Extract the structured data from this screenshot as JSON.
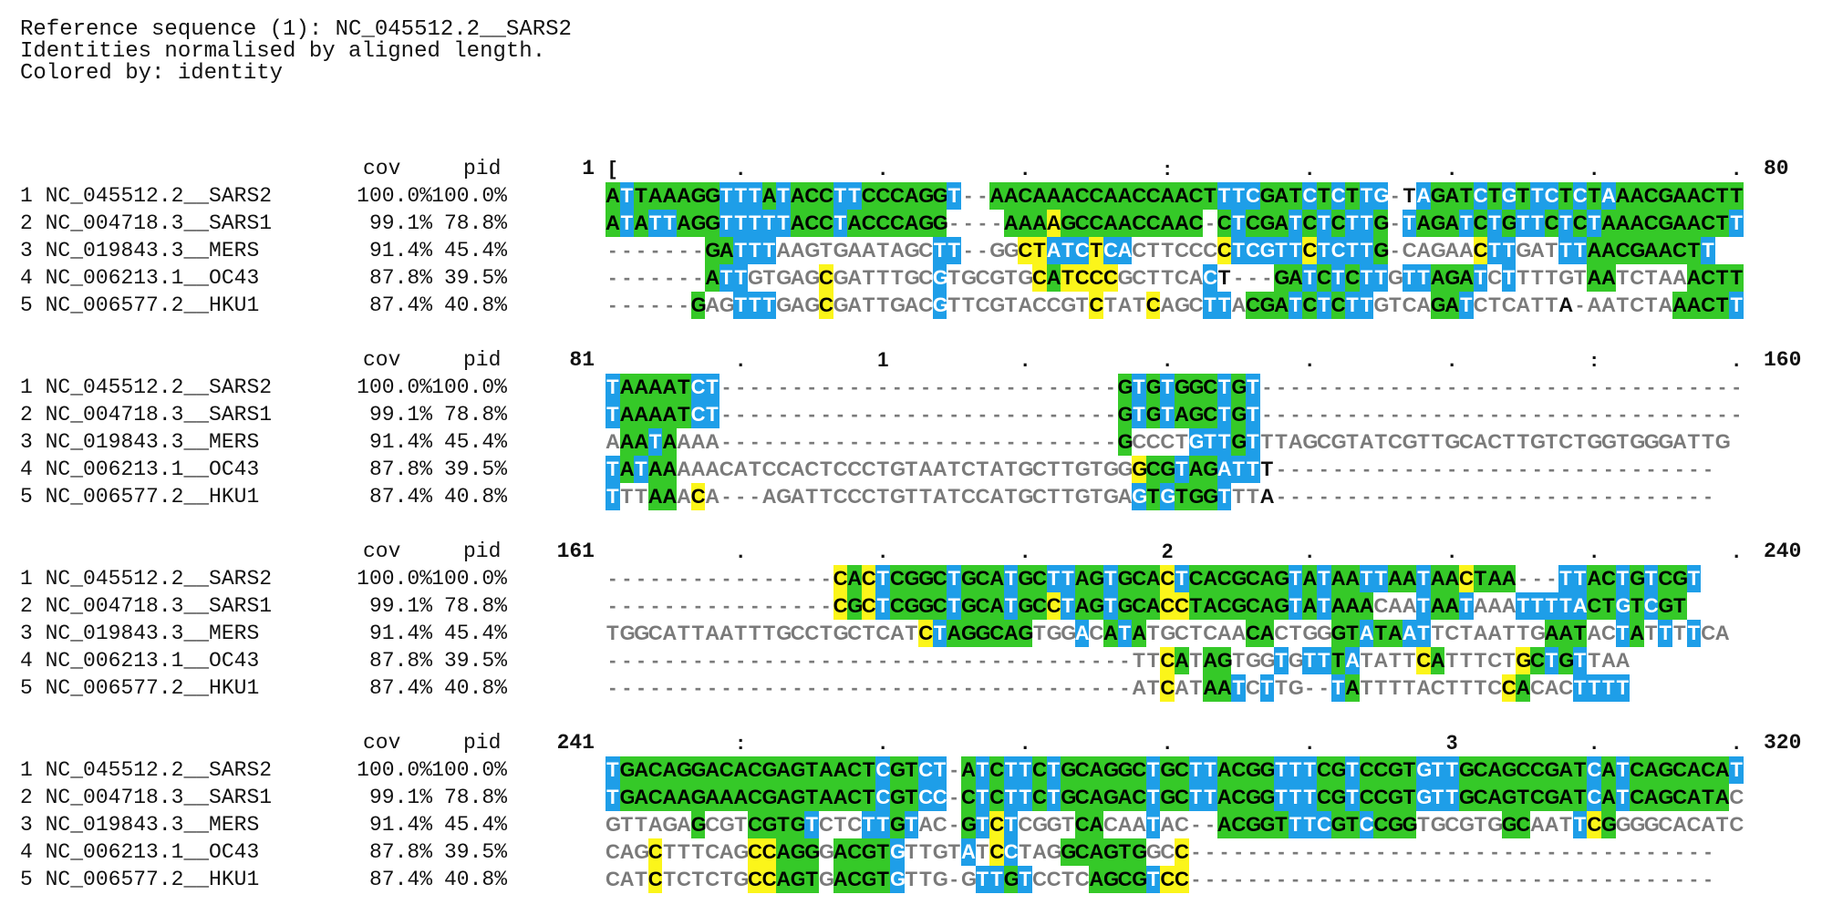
{
  "header": {
    "line1": "Reference sequence (1): NC_045512.2__SARS2",
    "line2": "Identities normalised by aligned length.",
    "line3": "Colored by: identity"
  },
  "columns": {
    "cov": "cov",
    "pid": "pid"
  },
  "colors": {
    "identity_high": "#35c928",
    "identity_mid": "#fbf51a",
    "identity_low": "#1e9ee8",
    "unaligned": "#7a7a7a"
  },
  "sequences": [
    {
      "num": "1",
      "name": "NC_045512.2__SARS2",
      "cov": "100.0%",
      "pid": "100.0%"
    },
    {
      "num": "2",
      "name": "NC_004718.3__SARS1",
      "cov": "99.1%",
      "pid": "78.8%"
    },
    {
      "num": "3",
      "name": "NC_019843.3__MERS",
      "cov": "91.4%",
      "pid": "45.4%"
    },
    {
      "num": "4",
      "name": "NC_006213.1__OC43",
      "cov": "87.8%",
      "pid": "39.5%"
    },
    {
      "num": "5",
      "name": "NC_006577.2__HKU1",
      "cov": "87.4%",
      "pid": "40.8%"
    }
  ],
  "blocks": [
    {
      "start": "1",
      "end": "80",
      "ruler": "[        .         .         .         :         .         .         .         .",
      "rows": [
        {
          "seq": "ATTAAAGGTTTATACCTTCCCAGGT--AACAAACCAACCAACTTTCGATCTCTTG-TAGATCTGTTCTCTAAACGAACTT",
          "cls": "gbggggggbbbgbgggbbggggggb--ggggggggggggggggbbbgggbgbgbbg-bgggbgbgbbgbgbgggggggggbb"
        },
        {
          "seq": "ATATTAGGTTTTTACCTACCCAGG----AAAAGCCAACCAAC-CTCGATCTCTTG-TAGATCTGTTCTCTAAACGAACTT",
          "cls": "gbgbbgggbbbbbgggbggggggg----gggygggggggggg-gbgggbgbgbbg-bgggbgbgbbgbgbgggggggggbb"
        },
        {
          "seq": "-------GATTTAAGTGAATAGCTT--GGCTATCTCACTTCCCCTCGTTCTCTTG-CAGAACTTGATTTAACGAACTT",
          "cls": "-------ggbbbnnnnnnnnnnnbb--nnyybbbybbnnnnnnybbbbbybbbbg-nnnnnybbnnnbbggggggggbb"
        },
        {
          "seq": "-------ATTGTGAGCGATTTGCGTGCGTGCATCCCGCTTCACT---GATCTCTTGTTAGATCTTTTGTAATCTAAACTT",
          "cls": "-------gbbnnnnnynnnnnnnbnnnnnnygyyyynnnnnnb---gggbgbgbbnbbgggbnbnnnnnggnnnnnggggbb"
        },
        {
          "seq": "------GAGTTTGAGCGATTGACGTTCGTACCGTCTATCAGCTTACGATCTCTTGTCAGATCTCATTA-AATCTAAACTT",
          "cls": "------gnnbbbnnnynnnnnnnbnnnnnnnnnnynnnynnnbbngggbgbgbbnnnnggbnnnnnn-nnnnnnnggggbb"
        }
      ]
    },
    {
      "start": "81",
      "end": "160",
      "ruler": "         .         1         .         .         .         .         :         .",
      "rows": [
        {
          "seq": "TAAAATCT----------------------------GTGTGGCTGT----------------------------------",
          "cls": "bgggggbb----------------------------gbgbgggbgb----------------------------------"
        },
        {
          "seq": "TAAAATCT----------------------------GTGTAGCTGT----------------------------------",
          "cls": "bgggggbb----------------------------gbgbgggbgb----------------------------------"
        },
        {
          "seq": "AAATAAAA----------------------------GCCCTGTTGTTTAGCGTATCGTTGCACTTGTCTGGTGGGATTG",
          "cls": "nggbgnnn----------------------------gnnnnbbbgbnnnnnnnnnnnnnnnnnnnnnnnnnnnnnnnnnn"
        },
        {
          "seq": "TATAAAAACATCCACTCCCTGTAATCTATGCTTGTGGGCGTAGATTT-------------------------------",
          "cls": "bgbggnnnnnnnnnnnnnnnnnnnnnnnnnnnnnnnnyggbggbbb--------------------------------"
        },
        {
          "seq": "TTTAAACA---AGATTCCCTGTTATCCATGCTTGTGAGTGTGGTTTA-------------------------------",
          "cls": "bnnggnyn---nnnnnnnnnnnnnnnnnnnnnnnnnnbgbgggbnn--------------------------------"
        }
      ]
    },
    {
      "start": "161",
      "end": "240",
      "ruler": "         .         .         .         2         .         .         .         .",
      "rows": [
        {
          "seq": "----------------CACTCGGCTGCATGCTTAGTGCACTCACGCAGTATAATTAATAACTAA---TTACTGTCGT",
          "cls": "----------------ygybggggbgggbggbbggbgggybgggggggbgbggbbggbggyggg---bbggbgbggb"
        },
        {
          "seq": "----------------CGCTCGGCTGCATGCCTAGTGCACCTACGCAGTATAAACAATAATAAATTTTACTGTCGT",
          "cls": "----------------ygybggggbgggbggybggbgggyygggggggbgbgggnnnbggbnnnbbbbbggbgbggb"
        },
        {
          "seq": "TGGCATTAATTTGCCTGCTCATCTAGGCAGTGGACATATGCTCAACACTGGGTATAATTCTAATTGAATACTATTTTCA",
          "cls": "nnnnnnnnnnnnnnnnnnnnnnybggggggnnnbngbgnnnnnnnggnnnnggbggbbnnnnnnnngggnnbgnbnbnnn"
        },
        {
          "seq": "-------------------------------------TTCATAGTGGTGTTTATATTCATTTCTGCTGTTAA",
          "cls": "-------------------------------------nnygnggnnnbnbbgbnnnnygnnnnnygbgbnn"
        },
        {
          "seq": "-------------------------------------ATCATAATCTTG--TATTTTACTTTCCACACTTTT",
          "cls": "-------------------------------------nnynnggbnbnn--bgnnnnnnnnnnygnnnbbbb"
        }
      ]
    },
    {
      "start": "241",
      "end": "320",
      "ruler": "         :         .         .         .         .         3         .         .",
      "rows": [
        {
          "seq": "TGACAGGACACGAGTAACTCGTCT-ATCTTCTGCAGGCTGCTTACGGTTTCGTCCGTGTTGCAGCCGATCATCAGCACAT",
          "cls": "bggggggggggggggggggbggbb-gbgbbgbggggggbggbbggggbbbggbggggbbbgggggggggbgbgggggggb"
        },
        {
          "seq": "TGACAAGAAACGAGTAACTCGTCC-CTCTTCTGCAGACTGCTTACGGTTTCGTCCGTGTTGCAGTCGATCATCAGCATAC",
          "cls": "bggggggggggggggggggbggbb-gbgbbgbggggggbggbbggggbbbggbggggbbbgggggggggbgbgggggggn"
        },
        {
          "seq": "GTTAGAGCGTCGTGTCTCTTGTAC-GTCTCGGTCACAATAC--ACGGTTTCGTCCGGTGCGTGGCAATTCGGGGCACATC",
          "cls": "nnnnnngnnnggggbnnnbbgbnn-gbybnnnnggnnnbnn--gggggbbbggbgggnnnnnnggnnnbygnnnnnnnnn"
        },
        {
          "seq": "CAGCTTTCAGCCAGGGACGTGTTGTATCCTAGGCAGTGGCC-------------------------------------",
          "cls": "nnnynnnnnnyygggnggggbnnnnbnybnnnggggggnnyy-------------------------------------"
        },
        {
          "seq": "CATCTCTCTGCCAGTGACGTGTTG-GTTGTCCTCAGCGTCC-------------------------------------",
          "cls": "nnnynnnnnnyygggnggggbnnn-nbbgbnnnnggggbyy-------------------------------------"
        }
      ]
    }
  ]
}
